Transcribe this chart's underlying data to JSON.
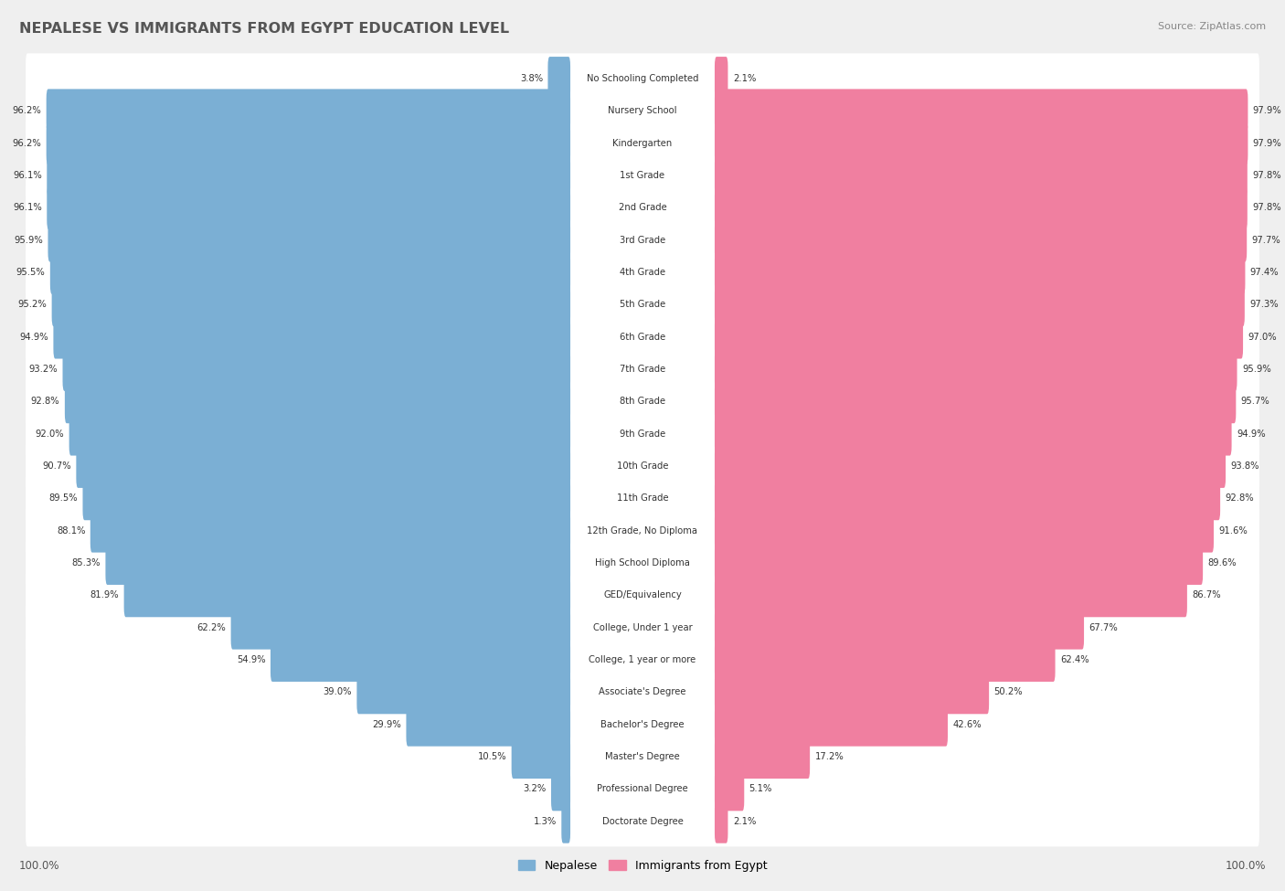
{
  "title": "NEPALESE VS IMMIGRANTS FROM EGYPT EDUCATION LEVEL",
  "source": "Source: ZipAtlas.com",
  "categories": [
    "No Schooling Completed",
    "Nursery School",
    "Kindergarten",
    "1st Grade",
    "2nd Grade",
    "3rd Grade",
    "4th Grade",
    "5th Grade",
    "6th Grade",
    "7th Grade",
    "8th Grade",
    "9th Grade",
    "10th Grade",
    "11th Grade",
    "12th Grade, No Diploma",
    "High School Diploma",
    "GED/Equivalency",
    "College, Under 1 year",
    "College, 1 year or more",
    "Associate's Degree",
    "Bachelor's Degree",
    "Master's Degree",
    "Professional Degree",
    "Doctorate Degree"
  ],
  "nepalese": [
    3.8,
    96.2,
    96.2,
    96.1,
    96.1,
    95.9,
    95.5,
    95.2,
    94.9,
    93.2,
    92.8,
    92.0,
    90.7,
    89.5,
    88.1,
    85.3,
    81.9,
    62.2,
    54.9,
    39.0,
    29.9,
    10.5,
    3.2,
    1.3
  ],
  "egypt": [
    2.1,
    97.9,
    97.9,
    97.8,
    97.8,
    97.7,
    97.4,
    97.3,
    97.0,
    95.9,
    95.7,
    94.9,
    93.8,
    92.8,
    91.6,
    89.6,
    86.7,
    67.7,
    62.4,
    50.2,
    42.6,
    17.2,
    5.1,
    2.1
  ],
  "blue_color": "#7bafd4",
  "pink_color": "#f07fa0",
  "bg_color": "#efefef",
  "bar_bg_color": "#ffffff",
  "legend_blue": "Nepalese",
  "legend_pink": "Immigrants from Egypt",
  "left_label": "100.0%",
  "right_label": "100.0%"
}
